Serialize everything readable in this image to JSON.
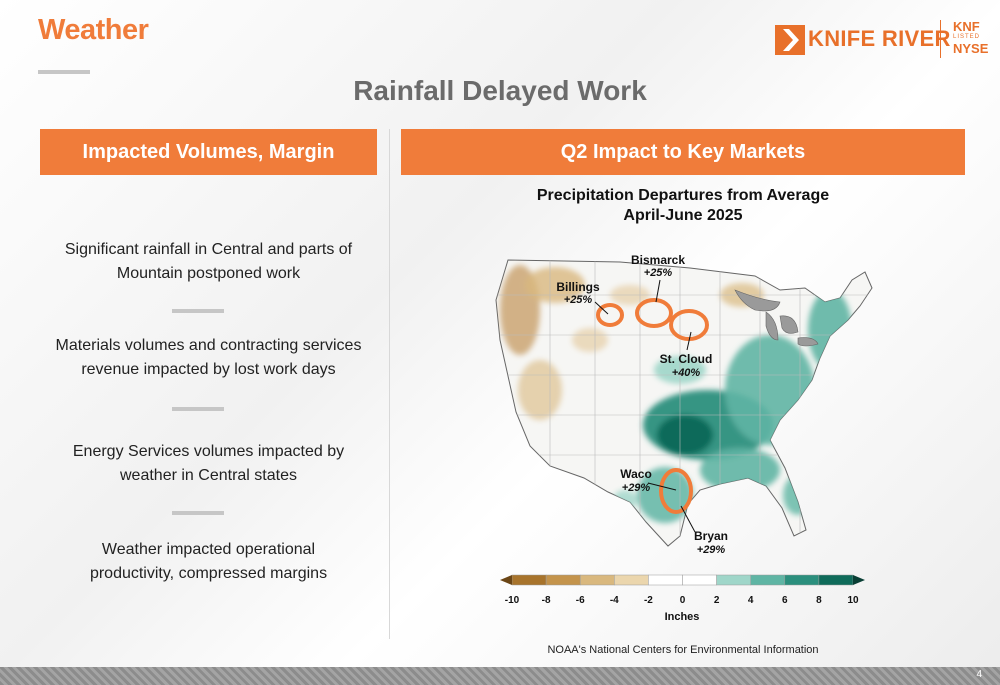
{
  "header": {
    "section_title": "Weather",
    "slide_title": "Rainfall Delayed Work",
    "logo": {
      "company": "KNIFE RIVER",
      "ticker": "KNF",
      "listed": "LISTED",
      "exchange": "NYSE",
      "icon": "knife-river-chevron-icon",
      "color": "#e8702a"
    }
  },
  "left_panel": {
    "banner": "Impacted Volumes, Margin",
    "bullets": [
      {
        "line1": "Significant rainfall in Central and parts of",
        "line2": "Mountain postponed work"
      },
      {
        "line1": "Materials volumes and contracting services",
        "line2": "revenue impacted by lost work days"
      },
      {
        "line1": "Energy Services volumes impacted by",
        "line2": "weather in Central states"
      },
      {
        "line1": "Weather impacted operational",
        "line2": "productivity, compressed margins"
      }
    ]
  },
  "right_panel": {
    "banner": "Q2 Impact to Key Markets",
    "map_title": {
      "line1": "Precipitation Departures from Average",
      "line2": "April-June 2025"
    },
    "markets": [
      {
        "name": "Billings",
        "change": "+25%"
      },
      {
        "name": "Bismarck",
        "change": "+25%"
      },
      {
        "name": "St. Cloud",
        "change": "+40%"
      },
      {
        "name": "Waco",
        "change": "+29%"
      },
      {
        "name": "Bryan",
        "change": "+29%"
      }
    ],
    "legend": {
      "ticks": [
        "-10",
        "-8",
        "-6",
        "-4",
        "-2",
        "0",
        "2",
        "4",
        "6",
        "8",
        "10"
      ],
      "unit": "Inches",
      "colors": [
        "#a8742c",
        "#c4944c",
        "#d9b87e",
        "#ebd6ad",
        "#ffffff",
        "#ffffff",
        "#9fd6c9",
        "#5fb5a4",
        "#2b8f7d",
        "#0f6b5a"
      ]
    },
    "source": "NOAA's National Centers for Environmental Information"
  },
  "colors": {
    "accent": "#f07c3a",
    "heading_gray": "#6b6b6b",
    "highlight_ring": "#f07c3a"
  },
  "footer": {
    "page_number": "4"
  }
}
